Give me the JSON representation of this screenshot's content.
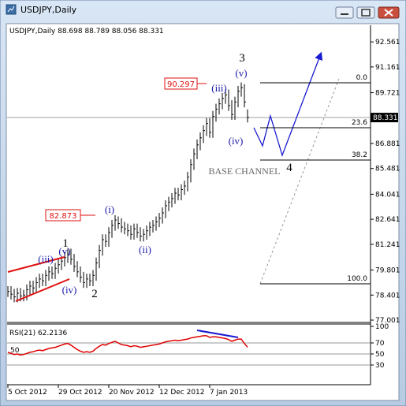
{
  "window_title": "USDJPY,Daily",
  "chart_data": [
    {
      "type": "ohlc",
      "title": "USDJPY,Daily  88.698 88.789 88.056 88.331",
      "color": "#000000",
      "categories": [
        "5 Oct 2012",
        null,
        null,
        null,
        null,
        null,
        null,
        null,
        null,
        null,
        null,
        null,
        null,
        null,
        null,
        null,
        "29 Oct 2012",
        null,
        null,
        null,
        null,
        null,
        null,
        null,
        null,
        null,
        null,
        null,
        null,
        null,
        null,
        null,
        "20 Nov 2012",
        null,
        null,
        null,
        null,
        null,
        null,
        null,
        null,
        null,
        null,
        null,
        null,
        null,
        null,
        null,
        "12 Dec 2012",
        null,
        null,
        null,
        null,
        null,
        null,
        null,
        null,
        null,
        null,
        null,
        null,
        null,
        null,
        null,
        "7 Jan 2013",
        null,
        null,
        null,
        null,
        null,
        null,
        null,
        null,
        null,
        null,
        null,
        null
      ],
      "high": [
        78.9,
        78.9,
        78.75,
        78.8,
        78.8,
        78.7,
        79.0,
        79.2,
        79.2,
        79.4,
        79.6,
        79.6,
        79.8,
        80.0,
        80.0,
        80.2,
        80.4,
        80.6,
        80.8,
        81.0,
        81.0,
        80.7,
        80.3,
        80.0,
        79.7,
        79.6,
        79.6,
        79.8,
        80.5,
        81.2,
        81.8,
        81.8,
        82.2,
        82.6,
        82.873,
        82.8,
        82.7,
        82.5,
        82.4,
        82.3,
        82.4,
        82.4,
        82.2,
        82.1,
        82.3,
        82.5,
        82.6,
        82.8,
        83.0,
        83.3,
        83.7,
        83.9,
        84.1,
        84.4,
        84.4,
        84.6,
        84.8,
        85.3,
        86.0,
        86.6,
        87.1,
        87.5,
        87.9,
        88.3,
        88.3,
        88.7,
        89.1,
        89.4,
        89.7,
        89.9,
        89.9,
        89.3,
        89.5,
        90.1,
        90.297,
        90.2,
        88.789
      ],
      "low": [
        78.3,
        78.15,
        78.0,
        78.0,
        78.05,
        78.05,
        78.1,
        78.4,
        78.5,
        78.5,
        78.8,
        78.9,
        78.9,
        79.2,
        79.3,
        79.3,
        79.6,
        79.8,
        80.0,
        80.2,
        80.1,
        79.7,
        79.4,
        79.1,
        78.8,
        78.8,
        78.9,
        78.9,
        79.2,
        79.9,
        80.6,
        81.1,
        81.1,
        81.6,
        82.0,
        82.1,
        81.9,
        81.8,
        81.7,
        81.5,
        81.5,
        81.6,
        81.4,
        81.4,
        81.5,
        81.7,
        81.9,
        82.0,
        82.2,
        82.4,
        82.7,
        83.1,
        83.3,
        83.5,
        83.7,
        83.7,
        84.0,
        84.2,
        84.7,
        85.4,
        86.0,
        86.5,
        86.9,
        87.3,
        87.2,
        87.2,
        88.1,
        88.5,
        88.8,
        89.1,
        88.7,
        88.2,
        88.2,
        88.9,
        89.5,
        88.9,
        88.056
      ],
      "close": [
        78.6,
        78.45,
        78.3,
        78.5,
        78.35,
        78.4,
        78.7,
        78.9,
        78.8,
        79.1,
        79.3,
        79.2,
        79.5,
        79.7,
        79.6,
        79.9,
        80.1,
        80.3,
        80.5,
        80.7,
        80.4,
        80.0,
        79.7,
        79.4,
        79.1,
        79.3,
        79.2,
        79.5,
        80.2,
        80.9,
        81.5,
        81.4,
        81.9,
        82.3,
        82.6,
        82.4,
        82.2,
        82.1,
        82.0,
        81.8,
        82.1,
        81.9,
        81.7,
        81.8,
        82.0,
        82.2,
        82.3,
        82.5,
        82.7,
        83.0,
        83.4,
        83.6,
        83.8,
        84.1,
        84.0,
        84.3,
        84.5,
        85.0,
        85.7,
        86.3,
        86.8,
        87.2,
        87.6,
        88.0,
        87.5,
        88.4,
        88.8,
        89.1,
        89.4,
        89.6,
        89.0,
        88.5,
        89.2,
        89.8,
        90.0,
        89.2,
        88.331
      ],
      "ylim": [
        76.87,
        93.45
      ],
      "yticks": [
        92.561,
        91.161,
        89.721,
        86.881,
        85.481,
        84.041,
        82.641,
        81.241,
        79.801,
        78.401,
        77.001
      ],
      "annotations": [
        "3",
        "(v)",
        "(iii)",
        "(iv)",
        "4",
        "BASE CHANNEL",
        "1",
        "(v)",
        "(iii)",
        "(iv)",
        "2",
        "(i)",
        "(ii)"
      ],
      "fib_levels": [
        "0.0",
        "23.6",
        "38.2",
        "100.0"
      ]
    },
    {
      "type": "line",
      "title": "RSI(21) 62.2136",
      "color": "#e00000",
      "level_label": "50",
      "values": [
        53,
        51,
        49,
        50,
        48,
        49,
        51,
        53,
        54,
        56,
        57,
        56,
        58,
        60,
        61,
        62,
        64,
        66,
        68,
        69,
        66,
        62,
        58,
        55,
        53,
        54,
        53,
        55,
        60,
        64,
        67,
        66,
        69,
        71,
        73,
        70,
        67,
        66,
        65,
        63,
        65,
        64,
        62,
        63,
        64,
        65,
        66,
        67,
        68,
        70,
        72,
        73,
        74,
        75,
        74,
        75,
        76,
        77,
        79,
        80,
        81,
        82,
        83,
        83,
        80,
        81,
        81,
        80,
        79,
        78,
        76,
        73,
        75,
        77,
        77,
        69,
        62.2136
      ],
      "ylim": [
        -5.7,
        101.4
      ],
      "yticks": [
        100,
        70,
        50,
        30
      ]
    }
  ]
}
